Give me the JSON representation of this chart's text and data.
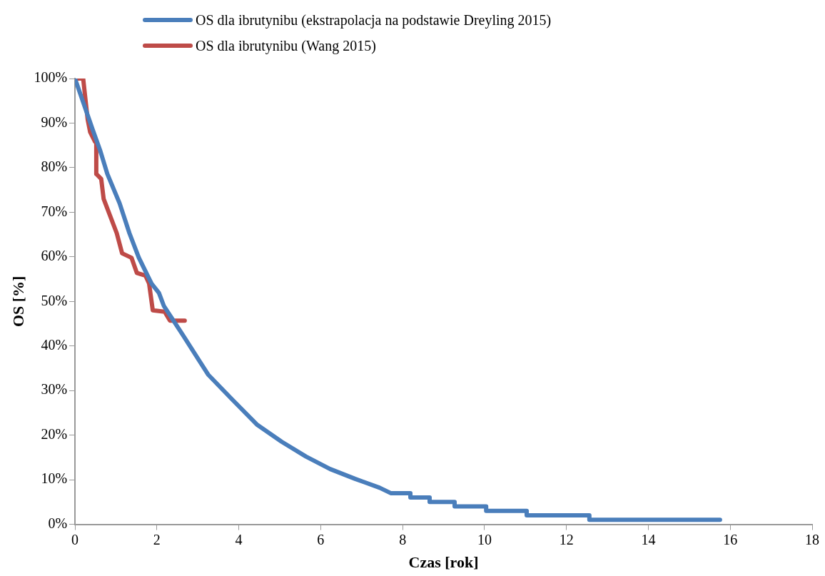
{
  "chart_data": {
    "type": "line",
    "xlabel": "Czas [rok]",
    "ylabel": "OS [%]",
    "legend": "top",
    "grid": false,
    "marker": "none",
    "line_style": "solid",
    "xlim": [
      0,
      18
    ],
    "xticks": [
      0,
      2,
      4,
      6,
      8,
      10,
      12,
      14,
      16,
      18
    ],
    "ylim": [
      0,
      100
    ],
    "yticks": [
      {
        "value": 0,
        "label": "0%"
      },
      {
        "value": 10,
        "label": "10%"
      },
      {
        "value": 20,
        "label": "20%"
      },
      {
        "value": 30,
        "label": "30%"
      },
      {
        "value": 40,
        "label": "40%"
      },
      {
        "value": 50,
        "label": "50%"
      },
      {
        "value": 60,
        "label": "60%"
      },
      {
        "value": 70,
        "label": "70%"
      },
      {
        "value": 80,
        "label": "80%"
      },
      {
        "value": 90,
        "label": "90%"
      },
      {
        "value": 100,
        "label": "100%"
      }
    ],
    "series": [
      {
        "name": "OS dla ibrutynibu (ekstrapolacja na podstawie Dreyling 2015)",
        "color": "#4a7ebb",
        "x": [
          0,
          0.43,
          0.61,
          0.79,
          1.09,
          1.33,
          1.56,
          1.87,
          2.05,
          2.17,
          2.64,
          3.25,
          3.84,
          4.44,
          5.05,
          5.64,
          6.23,
          6.84,
          7.44,
          7.71,
          8.19,
          8.19,
          8.66,
          8.66,
          9.27,
          9.27,
          10.04,
          10.04,
          11.03,
          11.03,
          12.56,
          12.56,
          15.75
        ],
        "values": [
          100,
          88.6,
          84,
          78.6,
          72,
          65.3,
          59.8,
          54,
          51.9,
          49,
          42.4,
          33.6,
          28,
          22.4,
          18.5,
          15.2,
          12.4,
          10.2,
          8.2,
          7,
          7,
          6,
          6,
          5,
          5,
          4,
          4,
          3,
          3,
          2,
          2,
          1,
          1
        ]
      },
      {
        "name": "OS dla ibrutynibu (Wang 2015)",
        "color": "#be4b48",
        "x": [
          0,
          0.2,
          0.31,
          0.37,
          0.49,
          0.52,
          0.52,
          0.64,
          0.7,
          1.02,
          1.15,
          1.38,
          1.51,
          1.72,
          1.81,
          1.9,
          2.19,
          2.32,
          2.68
        ],
        "values": [
          100,
          100,
          90.8,
          88,
          85.8,
          85.8,
          78.6,
          77.5,
          73,
          65.3,
          60.8,
          59.8,
          56.4,
          55.8,
          54,
          48,
          47.7,
          45.7,
          45.7
        ]
      }
    ]
  }
}
